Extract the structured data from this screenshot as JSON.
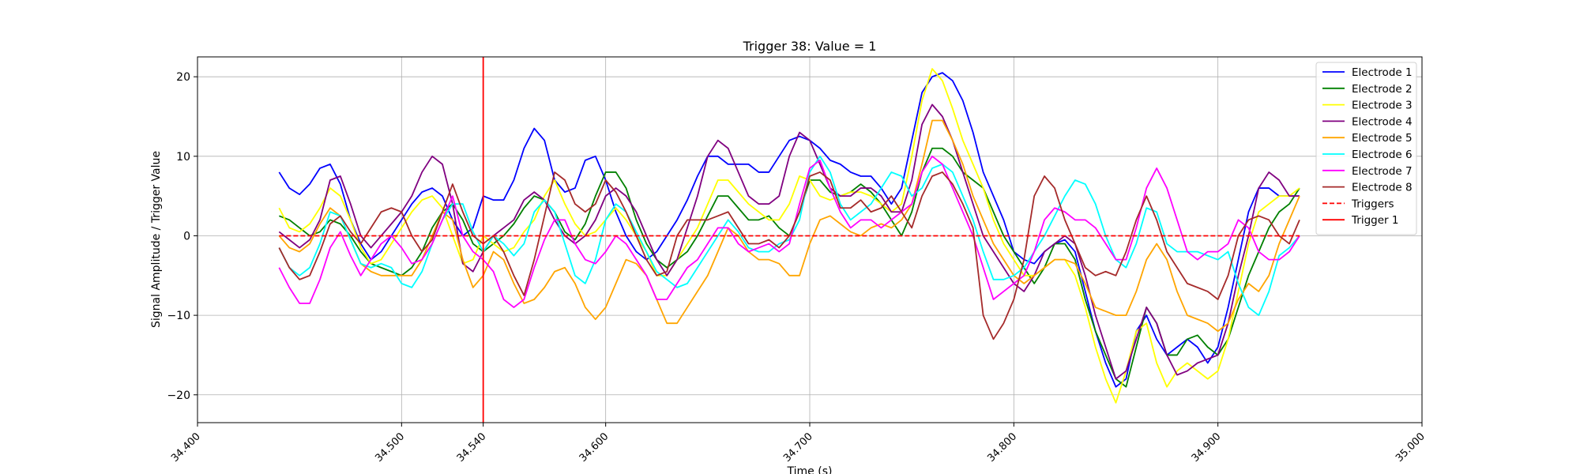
{
  "chart_data": {
    "type": "line",
    "title": "Trigger 38: Value = 1",
    "xlabel": "Time (s)",
    "ylabel": "Signal Amplitude / Trigger Value",
    "xlim": [
      34.4,
      35.0
    ],
    "ylim": [
      -23.5,
      22.5
    ],
    "grid": true,
    "legend_position": "top-right",
    "x_ticks": [
      {
        "value": 34.4,
        "label": "34.400"
      },
      {
        "value": 34.5,
        "label": "34.500"
      },
      {
        "value": 34.54,
        "label": "34.540"
      },
      {
        "value": 34.6,
        "label": "34.600"
      },
      {
        "value": 34.7,
        "label": "34.700"
      },
      {
        "value": 34.8,
        "label": "34.800"
      },
      {
        "value": 34.9,
        "label": "34.900"
      },
      {
        "value": 35.0,
        "label": "35.000"
      }
    ],
    "y_ticks": [
      {
        "value": -20,
        "label": "−20"
      },
      {
        "value": -10,
        "label": "−10"
      },
      {
        "value": 0,
        "label": "0"
      },
      {
        "value": 10,
        "label": "10"
      },
      {
        "value": 20,
        "label": "20"
      }
    ],
    "x": [
      34.44,
      34.445,
      34.45,
      34.455,
      34.46,
      34.465,
      34.47,
      34.475,
      34.48,
      34.485,
      34.49,
      34.495,
      34.5,
      34.505,
      34.51,
      34.515,
      34.52,
      34.525,
      34.53,
      34.535,
      34.54,
      34.545,
      34.55,
      34.555,
      34.56,
      34.565,
      34.57,
      34.575,
      34.58,
      34.585,
      34.59,
      34.595,
      34.6,
      34.605,
      34.61,
      34.615,
      34.62,
      34.625,
      34.63,
      34.635,
      34.64,
      34.645,
      34.65,
      34.655,
      34.66,
      34.665,
      34.67,
      34.675,
      34.68,
      34.685,
      34.69,
      34.695,
      34.7,
      34.705,
      34.71,
      34.715,
      34.72,
      34.725,
      34.73,
      34.735,
      34.74,
      34.745,
      34.75,
      34.755,
      34.76,
      34.765,
      34.77,
      34.775,
      34.78,
      34.785,
      34.79,
      34.795,
      34.8,
      34.805,
      34.81,
      34.815,
      34.82,
      34.825,
      34.83,
      34.835,
      34.84,
      34.845,
      34.85,
      34.855,
      34.86,
      34.865,
      34.87,
      34.875,
      34.88,
      34.885,
      34.89,
      34.895,
      34.9,
      34.905,
      34.91,
      34.915,
      34.92,
      34.925,
      34.93,
      34.935,
      34.94
    ],
    "series": [
      {
        "name": "Electrode 1",
        "color": "#0000ff",
        "values": [
          8,
          6,
          5.2,
          6.5,
          8.5,
          9,
          6.5,
          2,
          -1,
          -3,
          -2,
          0,
          2,
          4,
          5.5,
          6,
          5,
          2,
          0,
          1,
          5,
          4.5,
          4.5,
          7,
          11,
          13.5,
          12,
          7,
          5.5,
          6,
          9.5,
          10,
          7,
          3,
          0,
          -2,
          -3,
          -2,
          0,
          2,
          4.5,
          7.5,
          10,
          10,
          9,
          9,
          9,
          8,
          8,
          10,
          12,
          12.5,
          12,
          11,
          9.5,
          9,
          8,
          7.5,
          7.5,
          6,
          4,
          6,
          12,
          18,
          20,
          20.5,
          19.5,
          17,
          13,
          8,
          5,
          2,
          -2,
          -3,
          -3.5,
          -2,
          -1,
          -0.5,
          -2,
          -7,
          -12,
          -16,
          -19,
          -18,
          -12,
          -10,
          -13,
          -15,
          -14,
          -13,
          -14,
          -16,
          -14,
          -9,
          -3,
          3,
          6,
          6,
          5,
          5,
          5
        ]
      },
      {
        "name": "Electrode 2",
        "color": "#008000",
        "values": [
          2.5,
          2,
          1,
          0,
          0.5,
          2,
          1.5,
          0,
          -2,
          -3.5,
          -4,
          -4.5,
          -5,
          -4,
          -2,
          1,
          3,
          4,
          2,
          -1,
          -2,
          -1,
          0,
          1.5,
          3.5,
          5,
          4.5,
          3,
          0.5,
          -0.5,
          1.5,
          5,
          8,
          8,
          6,
          2,
          -1,
          -3,
          -4,
          -3,
          -2,
          0,
          2.5,
          5,
          5,
          3.5,
          2,
          2,
          2.5,
          1,
          0,
          3,
          7,
          7,
          5.5,
          5,
          5.5,
          6.5,
          5.5,
          4,
          2,
          0,
          3,
          8,
          11,
          11,
          10,
          8,
          7,
          6,
          3,
          0,
          -2,
          -4,
          -6,
          -4,
          -1,
          -1,
          -3,
          -8,
          -12,
          -15,
          -18,
          -19,
          -14,
          -9,
          -11,
          -15,
          -15,
          -13,
          -12.5,
          -14,
          -15,
          -13,
          -9,
          -5,
          -2,
          1,
          3,
          4,
          6
        ]
      },
      {
        "name": "Electrode 3",
        "color": "#ffff00",
        "values": [
          3.5,
          1,
          0.5,
          1.5,
          3.5,
          6,
          5,
          2,
          -1.5,
          -3.5,
          -3,
          -1,
          1,
          3,
          4.5,
          5,
          3.5,
          0,
          -3.5,
          -3,
          0,
          -1,
          -2,
          -1.5,
          0.5,
          2,
          5,
          7,
          4,
          1.5,
          0,
          0.5,
          2,
          3.5,
          2,
          0,
          -2,
          -5,
          -5,
          -3,
          -1,
          1,
          4,
          7,
          7,
          5.5,
          4,
          3,
          2,
          2,
          4,
          7.5,
          7,
          5,
          4.5,
          5,
          5.5,
          5.5,
          5,
          4,
          3,
          4,
          10,
          17,
          21,
          19.5,
          16,
          12,
          9,
          6,
          2,
          -1,
          -3,
          -5,
          -5,
          -4,
          -3,
          -3,
          -5,
          -9,
          -14,
          -18,
          -21,
          -17,
          -12,
          -11,
          -16,
          -19,
          -17,
          -16,
          -17,
          -18,
          -17,
          -13,
          -7,
          -1,
          3,
          4,
          5,
          5,
          6
        ]
      },
      {
        "name": "Electrode 4",
        "color": "#800080",
        "values": [
          0.5,
          -0.5,
          -1.5,
          -0.5,
          2,
          7,
          7.5,
          4,
          0,
          -1.5,
          0,
          1.5,
          3,
          5,
          8,
          10,
          9,
          4,
          -3.5,
          -4.5,
          -2,
          0,
          1,
          2,
          4.5,
          5.5,
          4.5,
          2,
          0,
          -1,
          0,
          2,
          5,
          6,
          5,
          3,
          0,
          -3,
          -5,
          -3,
          1,
          5,
          10,
          12,
          11,
          8,
          5,
          4,
          4,
          5,
          10,
          13,
          12,
          9,
          6,
          5,
          5,
          6,
          6,
          5,
          3,
          3,
          7,
          14,
          16.5,
          15,
          12,
          8,
          4,
          0,
          -2,
          -4,
          -6,
          -7,
          -5,
          -2,
          -1,
          0,
          -1,
          -5,
          -10,
          -14,
          -18,
          -17,
          -13,
          -9,
          -11,
          -15,
          -17.5,
          -17,
          -16,
          -15.5,
          -15,
          -11,
          -5,
          0,
          6,
          8,
          7,
          5,
          5
        ]
      },
      {
        "name": "Electrode 5",
        "color": "#ffa500",
        "values": [
          0,
          -1.5,
          -2,
          -1,
          1.5,
          3.5,
          2.5,
          -0.5,
          -3.5,
          -4.5,
          -5,
          -5,
          -5,
          -5,
          -3,
          0,
          3,
          2,
          -3,
          -6.5,
          -5,
          -2,
          -3,
          -6,
          -8.5,
          -8,
          -6.5,
          -4.5,
          -4,
          -6,
          -9,
          -10.5,
          -9,
          -6,
          -3,
          -3.5,
          -5,
          -8,
          -11,
          -11,
          -9,
          -7,
          -5,
          -2,
          1,
          0,
          -2,
          -3,
          -3,
          -3.5,
          -5,
          -5,
          -1,
          2,
          2.5,
          1.5,
          0.5,
          0,
          1,
          1.5,
          1,
          2,
          4,
          9,
          14.5,
          14.5,
          12,
          9,
          5,
          2,
          -1,
          -3,
          -5,
          -6,
          -5,
          -4,
          -3,
          -3,
          -3.5,
          -6,
          -9,
          -9.5,
          -10,
          -10,
          -7,
          -3,
          -1,
          -3,
          -7,
          -10,
          -10.5,
          -11,
          -12,
          -11,
          -8,
          -6,
          -7,
          -5,
          -1,
          2,
          5
        ]
      },
      {
        "name": "Electrode 6",
        "color": "#00ffff",
        "values": [
          -1.5,
          -4,
          -5,
          -4,
          -1,
          3,
          2.5,
          -0.5,
          -3.5,
          -4,
          -3.5,
          -4,
          -6,
          -6.5,
          -4.5,
          -1,
          2,
          4,
          4,
          0.5,
          -2,
          0,
          -1,
          -2.5,
          -1,
          3,
          4.5,
          3,
          -1,
          -5,
          -6,
          -3,
          2,
          4,
          3,
          0.5,
          -2,
          -4.5,
          -5.5,
          -6.5,
          -6,
          -4,
          -2,
          0,
          2,
          0.5,
          -1.5,
          -2,
          -2,
          -1,
          -0.5,
          2,
          8,
          10,
          8,
          4,
          2,
          3,
          4,
          6,
          8,
          7.5,
          5,
          6,
          8.5,
          9,
          8,
          5,
          2,
          -2,
          -5.5,
          -5.5,
          -5,
          -4,
          -2,
          0,
          2.5,
          5,
          7,
          6.5,
          4,
          0,
          -3,
          -4,
          -1,
          3.5,
          3,
          -1,
          -2,
          -2,
          -2,
          -2.5,
          -3,
          -2,
          -6,
          -9,
          -10,
          -7,
          -2.5,
          -1.5,
          0
        ]
      },
      {
        "name": "Electrode 7",
        "color": "#ff00ff",
        "values": [
          -4,
          -6.5,
          -8.5,
          -8.5,
          -5.5,
          -1.5,
          0.5,
          -2.5,
          -5,
          -3,
          -1,
          0,
          -1.5,
          -3.5,
          -3,
          -1,
          2,
          5,
          0,
          -2,
          -3,
          -4.5,
          -8,
          -9,
          -8,
          -4,
          -0.5,
          2,
          2,
          -1,
          -3,
          -3.5,
          -2,
          0,
          -1,
          -3,
          -5,
          -8,
          -8,
          -6,
          -4,
          -3,
          -1,
          1,
          1,
          -1,
          -2,
          -1.5,
          -1,
          -2,
          -1,
          4,
          8.5,
          9.5,
          6,
          3,
          1,
          2,
          2,
          1,
          2,
          3,
          4,
          8,
          10,
          9,
          6,
          3,
          0,
          -4,
          -8,
          -7,
          -6,
          -5,
          -2,
          2,
          3.5,
          3,
          2,
          2,
          1,
          -1,
          -3,
          -3,
          1,
          6,
          8.5,
          6,
          2,
          -2,
          -3,
          -2,
          -2,
          -1,
          2,
          1,
          -2,
          -3,
          -3,
          -2,
          0
        ]
      },
      {
        "name": "Electrode 8",
        "color": "#a52a2a",
        "values": [
          -1.5,
          -4,
          -5.5,
          -5,
          -2,
          1.5,
          2.5,
          0.5,
          -1,
          1,
          3,
          3.5,
          3,
          0,
          -2,
          -0.5,
          3,
          6.5,
          3,
          0,
          -1,
          0,
          -2,
          -5,
          -7.5,
          -3,
          2.5,
          8,
          7,
          4,
          3,
          4,
          7,
          5.5,
          3,
          0,
          -3,
          -5,
          -4.5,
          0,
          2,
          2,
          2,
          2.5,
          3,
          1,
          -1,
          -1,
          -0.5,
          -1.5,
          0,
          3,
          7.5,
          8,
          7,
          3.5,
          3.5,
          4.5,
          3,
          3.5,
          5,
          3,
          1,
          5,
          7.5,
          8,
          6.5,
          4,
          1,
          -10,
          -13,
          -11,
          -8,
          -3,
          5,
          7.5,
          6,
          2,
          -1,
          -4,
          -5,
          -4.5,
          -5,
          -2,
          2,
          5,
          2,
          -2,
          -4,
          -6,
          -6.5,
          -7,
          -8,
          -5,
          0,
          2,
          2.5,
          2,
          0,
          -1,
          2
        ]
      },
      {
        "name": "Triggers",
        "color": "#ff0000",
        "dashed": true,
        "x": [
          34.44,
          34.94
        ],
        "values": [
          0,
          0
        ]
      }
    ],
    "vertical_lines": [
      {
        "name": "Trigger 1",
        "x": 34.54,
        "color": "#ff0000"
      }
    ]
  }
}
